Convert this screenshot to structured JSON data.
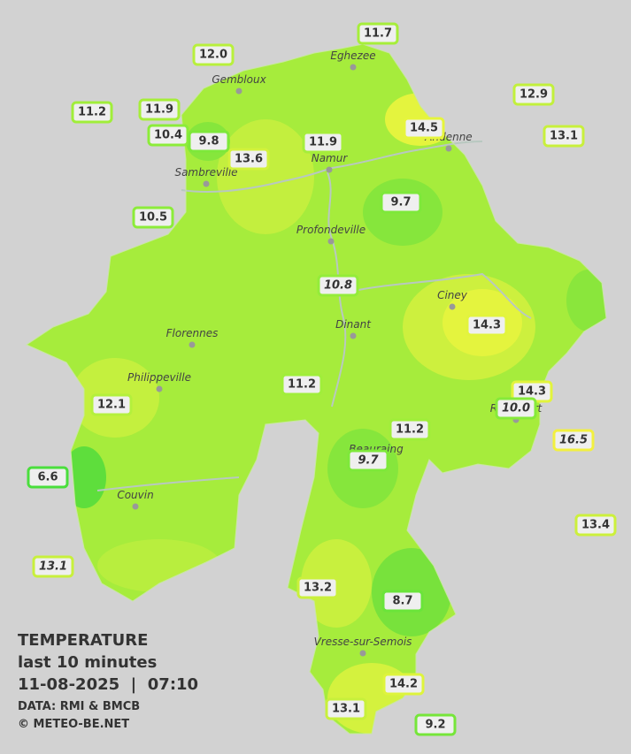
{
  "legend": {
    "title": "TEMPERATURE",
    "subtitle": "last 10 minutes",
    "date": "11-08-2025  |  07:10",
    "source": "DATA: RMI & BMCB",
    "copyright": "© METEO-BE.NET"
  },
  "cities": [
    "Eghezee",
    "Gembloux",
    "Andenne",
    "Namur",
    "Sambreville",
    "Profondeville",
    "Ciney",
    "Dinant",
    "Florennes",
    "Philippeville",
    "Rochefort",
    "Beauraing",
    "Couvin",
    "Vresse-sur-Semois"
  ],
  "stations": [
    {
      "label": "12.0",
      "color": "#b8f03c",
      "italic": false
    },
    {
      "label": "11.7",
      "color": "#a6ee3a",
      "italic": false
    },
    {
      "label": "11.2",
      "color": "#a0ee3a",
      "italic": false
    },
    {
      "label": "11.9",
      "color": "#a6ee3a",
      "italic": false
    },
    {
      "label": "10.4",
      "color": "#8cec3a",
      "italic": false
    },
    {
      "label": "9.8",
      "color": "#7ee83a",
      "italic": false
    },
    {
      "label": "13.6",
      "color": "#d2f23c",
      "italic": false
    },
    {
      "label": "11.9",
      "color": "#a6ee3a",
      "italic": false
    },
    {
      "label": "14.5",
      "color": "#e6f53c",
      "italic": false
    },
    {
      "label": "12.9",
      "color": "#c2f03c",
      "italic": false
    },
    {
      "label": "13.1",
      "color": "#c8f03c",
      "italic": false
    },
    {
      "label": "10.5",
      "color": "#8cec3a",
      "italic": false
    },
    {
      "label": "9.7",
      "color": "#7ee83a",
      "italic": false
    },
    {
      "label": "10.8",
      "color": "#94ec3a",
      "italic": true
    },
    {
      "label": "14.3",
      "color": "#e2f43c",
      "italic": false
    },
    {
      "label": "12.1",
      "color": "#b4f03c",
      "italic": false
    },
    {
      "label": "11.2",
      "color": "#a0ee3a",
      "italic": false
    },
    {
      "label": "14.3",
      "color": "#e2f43c",
      "italic": false
    },
    {
      "label": "10.0",
      "color": "#86ea3a",
      "italic": true
    },
    {
      "label": "11.2",
      "color": "#a0ee3a",
      "italic": false
    },
    {
      "label": "16.5",
      "color": "#f2f040",
      "italic": true
    },
    {
      "label": "9.7",
      "color": "#7ee83a",
      "italic": true
    },
    {
      "label": "6.6",
      "color": "#4ade3c",
      "italic": false
    },
    {
      "label": "13.4",
      "color": "#ccf03c",
      "italic": false
    },
    {
      "label": "13.1",
      "color": "#c8f03c",
      "italic": true
    },
    {
      "label": "13.2",
      "color": "#caf03c",
      "italic": false
    },
    {
      "label": "8.7",
      "color": "#6ae43a",
      "italic": false
    },
    {
      "label": "14.2",
      "color": "#def43c",
      "italic": false
    },
    {
      "label": "13.1",
      "color": "#c8f03c",
      "italic": false
    },
    {
      "label": "9.2",
      "color": "#76e63a",
      "italic": false
    }
  ]
}
